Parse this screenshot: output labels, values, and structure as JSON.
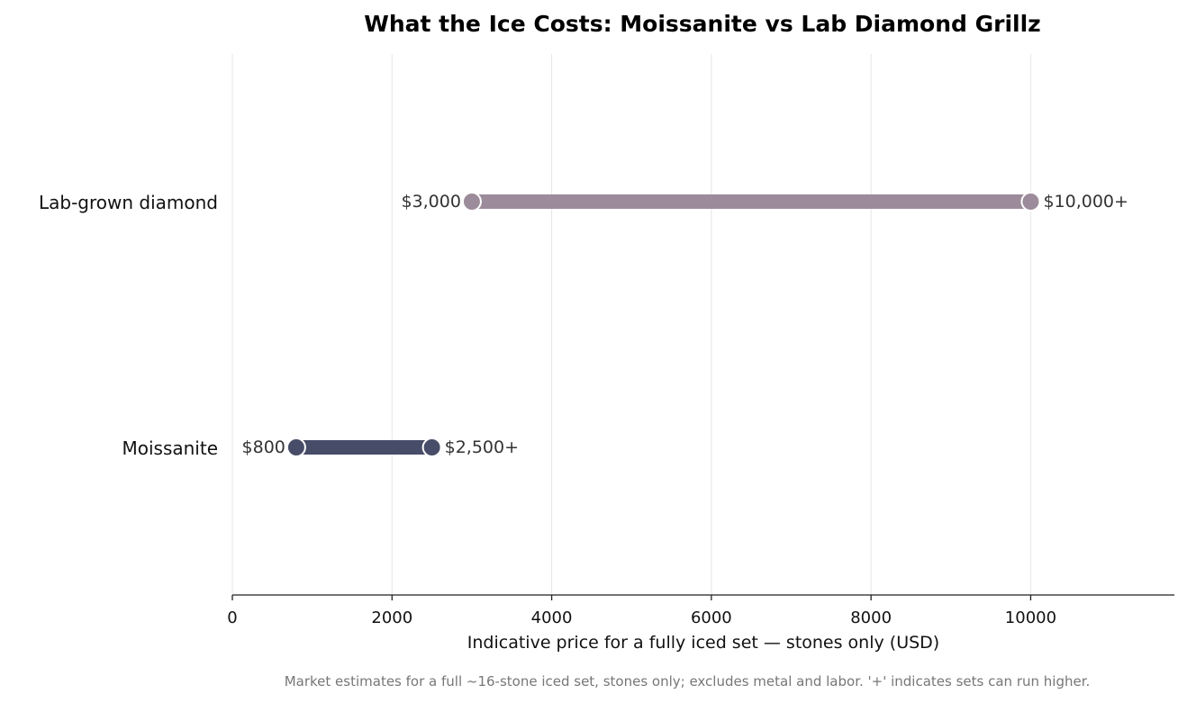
{
  "chart_data": {
    "type": "range",
    "title": "What the Ice Costs: Moissanite vs Lab Diamond Grillz",
    "xlabel": "Indicative price for a fully iced set — stones only (USD)",
    "ylabel": "",
    "xlim": [
      0,
      11800
    ],
    "x_ticks": [
      0,
      2000,
      4000,
      6000,
      8000,
      10000
    ],
    "grid": "vertical",
    "categories": [
      {
        "name": "Lab-grown diamond",
        "low": 3000,
        "high": 10000,
        "low_label": "$3,000",
        "high_label": "$10,000+",
        "color": "#9c8b9a"
      },
      {
        "name": "Moissanite",
        "low": 800,
        "high": 2500,
        "low_label": "$800",
        "high_label": "$2,500+",
        "color": "#474c68"
      }
    ],
    "footnote": "Market estimates for a full ~16-stone iced set, stones only; excludes metal and labor. '+' indicates sets can run higher."
  }
}
